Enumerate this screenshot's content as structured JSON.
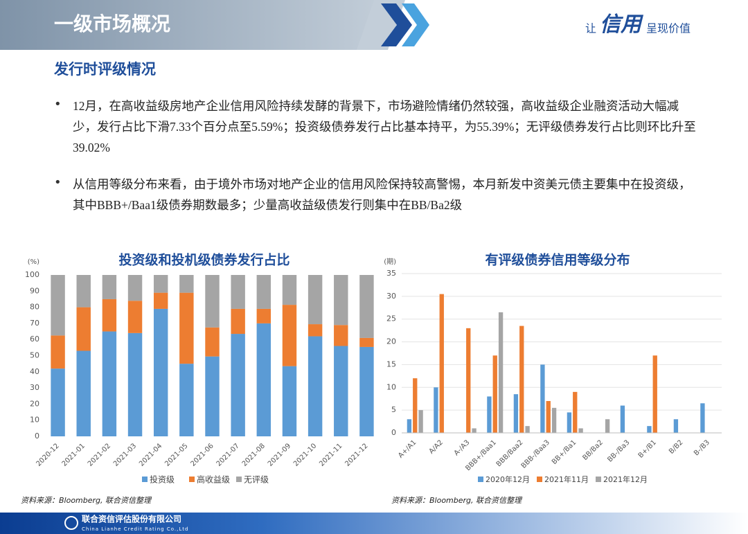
{
  "header": {
    "title": "一级市场概况",
    "slogan_prefix": "让",
    "slogan_logo": "信用",
    "slogan_suffix": "呈现价值"
  },
  "section_title": "发行时评级情况",
  "bullets": [
    "12月，在高收益级房地产企业信用风险持续发酵的背景下，市场避险情绪仍然较强，高收益级企业融资活动大幅减少，发行占比下滑7.33个百分点至5.59%；投资级债券发行占比基本持平，为55.39%；无评级债券发行占比则环比升至39.02%",
    "从信用等级分布来看，由于境外市场对地产企业的信用风险保持较高警惕，本月新发中资美元债主要集中在投资级，其中BBB+/Baa1级债券期数最多；少量高收益级债发行则集中在BB/Ba2级"
  ],
  "chart_data": [
    {
      "type": "bar",
      "stacked": true,
      "grid": false,
      "title": "投资级和投机级债券发行占比",
      "y_label": "(%)",
      "categories": [
        "2020-12",
        "2021-01",
        "2021-02",
        "2021-03",
        "2021-04",
        "2021-05",
        "2021-06",
        "2021-07",
        "2021-08",
        "2021-09",
        "2021-10",
        "2021-11",
        "2021-12"
      ],
      "series": [
        {
          "name": "投资级",
          "color": "#5b9bd5",
          "values": [
            42,
            53,
            65,
            64,
            79,
            45,
            49.5,
            63.5,
            70,
            43.5,
            62,
            56,
            55.39
          ]
        },
        {
          "name": "高收益级",
          "color": "#ed7d31",
          "values": [
            20.5,
            27,
            20,
            20,
            10,
            44,
            18,
            15.5,
            9,
            38,
            7.5,
            13,
            5.59
          ]
        },
        {
          "name": "无评级",
          "color": "#a5a5a5",
          "values": [
            37.5,
            20,
            15,
            16,
            11,
            11,
            32.5,
            21,
            21,
            18.5,
            30.5,
            31,
            39.02
          ]
        }
      ],
      "ylim": [
        0,
        100
      ],
      "yticks": [
        0,
        10,
        20,
        30,
        40,
        50,
        60,
        70,
        80,
        90,
        100
      ],
      "source": "资料来源：Bloomberg, 联合资信整理"
    },
    {
      "type": "bar",
      "stacked": false,
      "grid": true,
      "title": "有评级债券信用等级分布",
      "y_label": "(期)",
      "categories": [
        "A+/A1",
        "A/A2",
        "A-/A3",
        "BBB+/Baa1",
        "BBB/Baa2",
        "BBB-/Baa3",
        "BB+/Ba1",
        "BB/Ba2",
        "BB-/Ba3",
        "B+/B1",
        "B/B2",
        "B-/B3"
      ],
      "series": [
        {
          "name": "2020年12月",
          "color": "#5b9bd5",
          "values": [
            3,
            10,
            0,
            8,
            8.5,
            15,
            4.5,
            0,
            6,
            1.5,
            3,
            6.5
          ]
        },
        {
          "name": "2021年11月",
          "color": "#ed7d31",
          "values": [
            12,
            30.5,
            23,
            17,
            23.5,
            7,
            9,
            0,
            0,
            17,
            0,
            0
          ]
        },
        {
          "name": "2021年12月",
          "color": "#a5a5a5",
          "values": [
            5,
            0,
            1,
            26.5,
            1.5,
            5.5,
            1,
            3,
            0,
            0,
            0,
            0
          ]
        }
      ],
      "ylim": [
        0,
        35
      ],
      "yticks": [
        0,
        5,
        10,
        15,
        20,
        25,
        30,
        35
      ],
      "source": "资料来源：Bloomberg, 联合资信整理"
    }
  ],
  "footer": {
    "company": "联合资信评估股份有限公司",
    "company_en": "China Lianhe Credit Rating Co.,Ltd"
  }
}
